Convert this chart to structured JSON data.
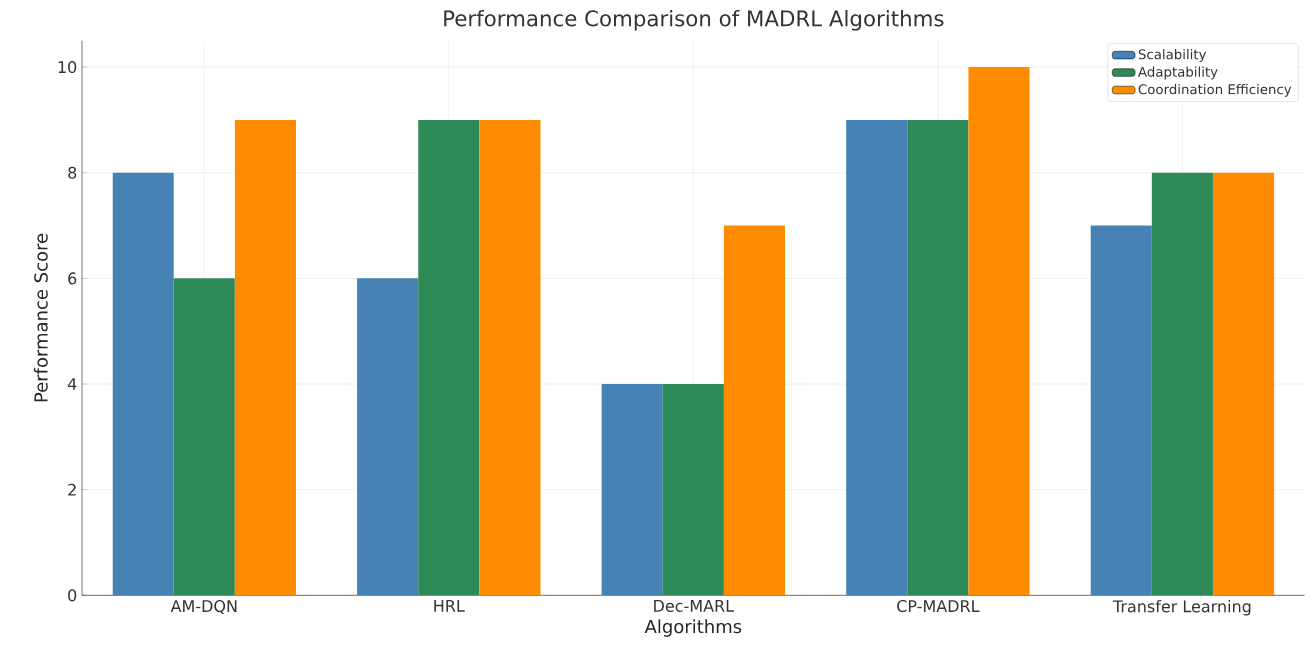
{
  "chart_data": {
    "type": "bar",
    "title": "Performance Comparison of MADRL Algorithms",
    "xlabel": "Algorithms",
    "ylabel": "Performance Score",
    "categories": [
      "AM-DQN",
      "HRL",
      "Dec-MARL",
      "CP-MADRL",
      "Transfer Learning"
    ],
    "series": [
      {
        "name": "Scalability",
        "color": "#4682b4",
        "values": [
          8,
          6,
          4,
          9,
          7
        ]
      },
      {
        "name": "Adaptability",
        "color": "#2e8b57",
        "values": [
          6,
          9,
          4,
          9,
          8
        ]
      },
      {
        "name": "Coordination Efficiency",
        "color": "#ff8c00",
        "values": [
          9,
          9,
          7,
          10,
          8
        ]
      }
    ],
    "ylim": [
      0,
      10.5
    ],
    "yticks": [
      0,
      2,
      4,
      6,
      8,
      10
    ],
    "grid": true,
    "legend": "top right"
  }
}
